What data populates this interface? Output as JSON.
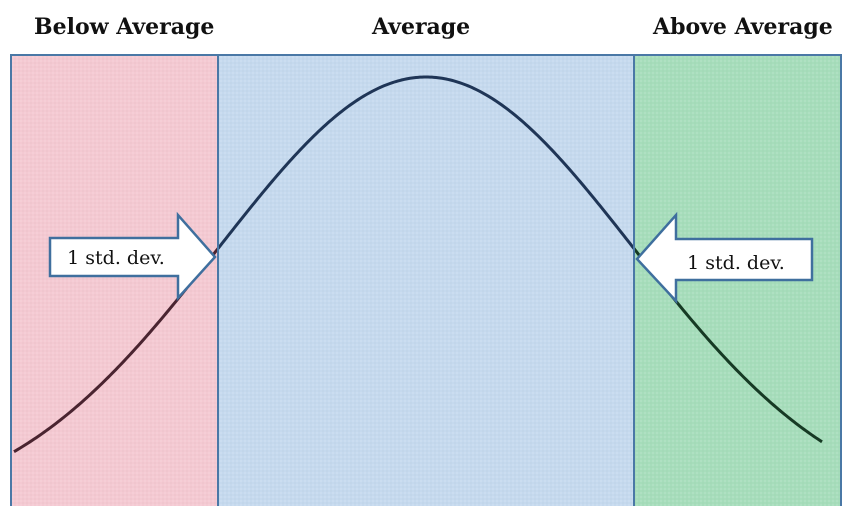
{
  "labels": {
    "below": "Below Average",
    "average": "Average",
    "above": "Above Average"
  },
  "arrows": {
    "left_text": "1 std. dev.",
    "right_text": "1 std. dev."
  },
  "colors": {
    "below_fill": "#f4c9d2",
    "average_fill": "#c5d9ee",
    "above_fill": "#a6ddbb",
    "border": "#4a78a6",
    "curve_center": "#1f3556",
    "curve_left_tail": "#4a2430",
    "curve_right_tail": "#163a24"
  }
}
